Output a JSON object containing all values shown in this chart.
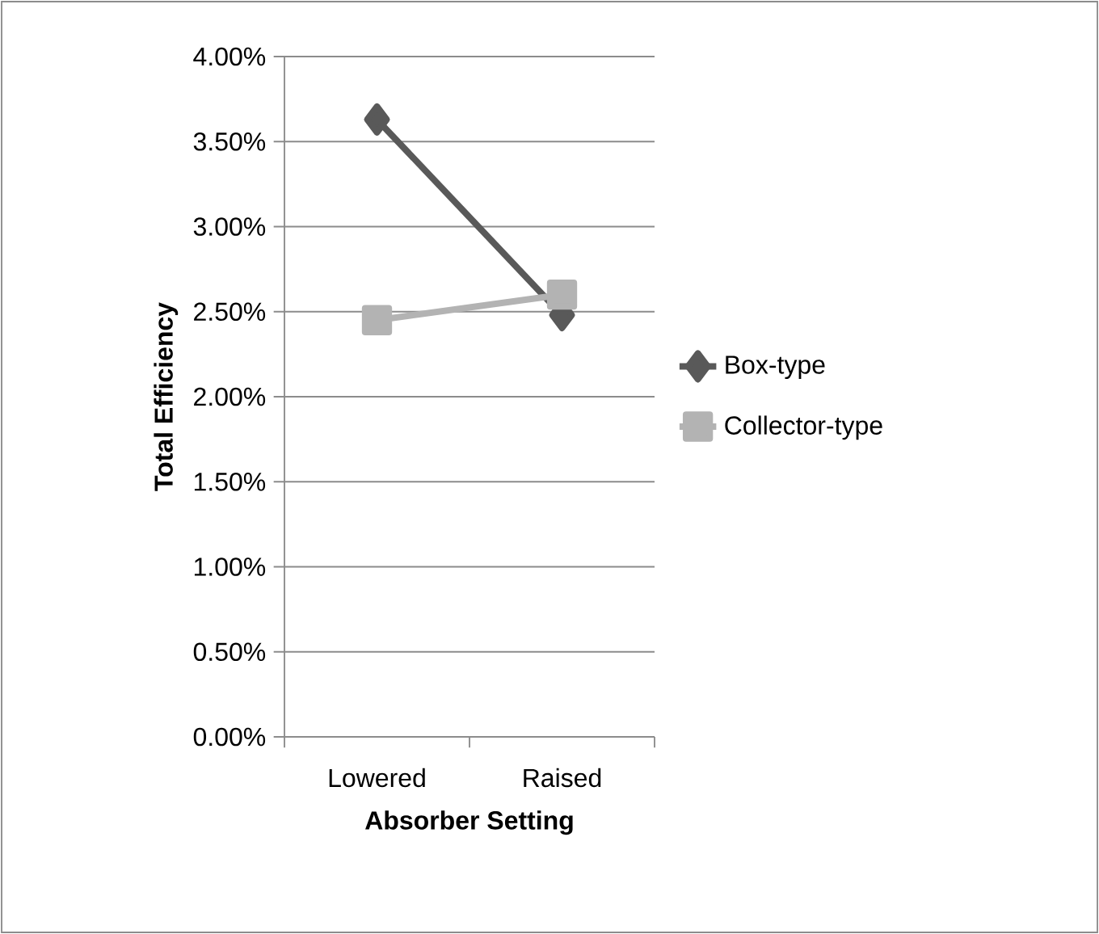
{
  "chart_data": {
    "type": "line",
    "xlabel": "Absorber Setting",
    "ylabel": "Total Efficiency",
    "categories": [
      "Lowered",
      "Raised"
    ],
    "series": [
      {
        "name": "Box-type",
        "color": "#595959",
        "marker": "diamond",
        "values": [
          3.63,
          2.48
        ]
      },
      {
        "name": "Collector-type",
        "color": "#b3b3b3",
        "marker": "square",
        "values": [
          2.45,
          2.6
        ]
      }
    ],
    "ylim": [
      0,
      4
    ],
    "yticks": [
      {
        "value": 0,
        "label": "0.00%"
      },
      {
        "value": 0.5,
        "label": "0.50%"
      },
      {
        "value": 1,
        "label": "1.00%"
      },
      {
        "value": 1.5,
        "label": "1.50%"
      },
      {
        "value": 2,
        "label": "2.00%"
      },
      {
        "value": 2.5,
        "label": "2.50%"
      },
      {
        "value": 3,
        "label": "3.00%"
      },
      {
        "value": 3.5,
        "label": "3.50%"
      },
      {
        "value": 4,
        "label": "4.00%"
      }
    ],
    "grid": "y",
    "legend": "right",
    "line_style": "solid"
  }
}
